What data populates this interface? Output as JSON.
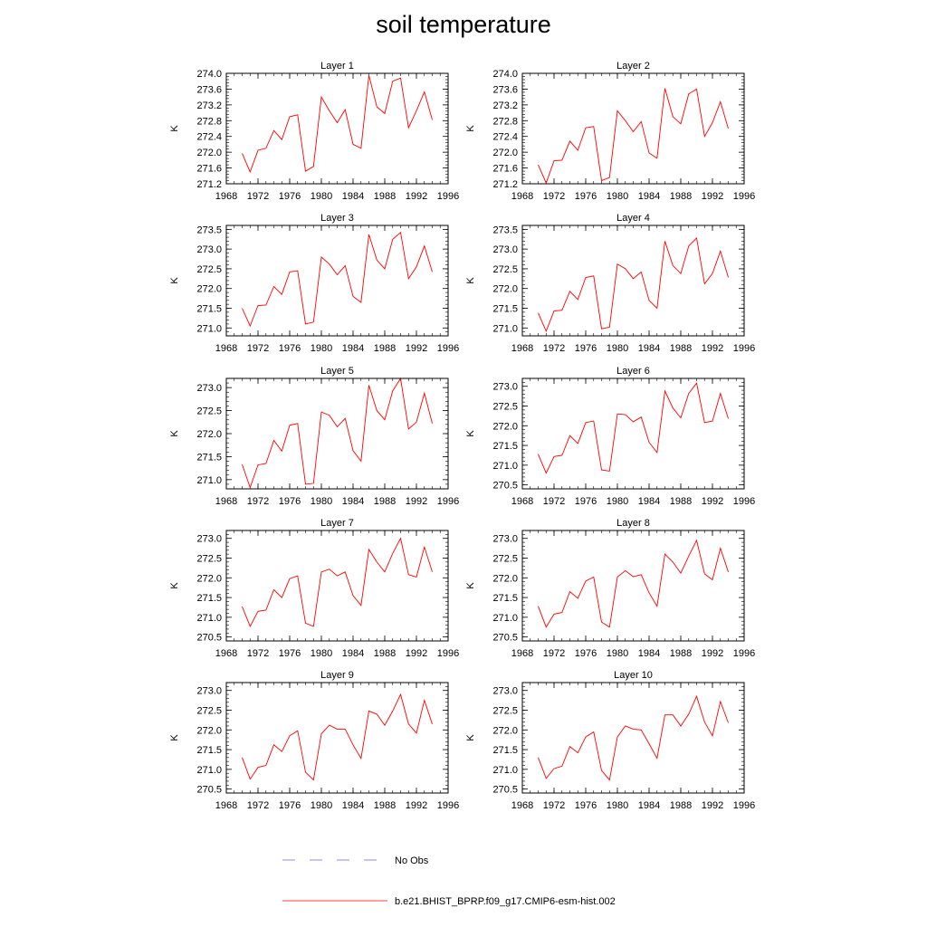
{
  "title": "soil temperature",
  "colors": {
    "model": "#ff0000",
    "obs": "#6a6ad8",
    "axis": "#000000"
  },
  "legend": {
    "obs_label": "No Obs",
    "model_label": "b.e21.BHIST_BPRP.f09_g17.CMIP6-esm-hist.002"
  },
  "chart_data": [
    {
      "type": "line",
      "title": "Layer 1",
      "xlabel": "",
      "ylabel": "K",
      "xlim": [
        1968,
        1996
      ],
      "ylim": [
        271.2,
        274.0
      ],
      "xticks": [
        1968,
        1972,
        1976,
        1980,
        1984,
        1988,
        1992,
        1996
      ],
      "yticks": [
        271.2,
        271.6,
        272.0,
        272.4,
        272.8,
        273.2,
        273.6,
        274.0
      ],
      "ytick_labels": [
        "271.2",
        "271.6",
        "272.0",
        "272.4",
        "272.8",
        "273.2",
        "273.6",
        "274.0"
      ],
      "x": [
        1970,
        1971,
        1972,
        1973,
        1974,
        1975,
        1976,
        1977,
        1978,
        1979,
        1980,
        1981,
        1982,
        1983,
        1984,
        1985,
        1986,
        1987,
        1988,
        1989,
        1990,
        1991,
        1992,
        1993,
        1994
      ],
      "series": [
        {
          "name": "b.e21.BHIST_BPRP.f09_g17.CMIP6-esm-hist.002",
          "values": [
            271.97,
            271.5,
            272.05,
            272.1,
            272.55,
            272.32,
            272.9,
            272.95,
            271.52,
            271.64,
            273.4,
            273.05,
            272.75,
            273.08,
            272.2,
            272.1,
            273.95,
            273.15,
            272.98,
            273.8,
            273.88,
            272.62,
            273.05,
            273.53,
            272.82
          ]
        }
      ]
    },
    {
      "type": "line",
      "title": "Layer 2",
      "xlabel": "",
      "ylabel": "K",
      "xlim": [
        1968,
        1996
      ],
      "ylim": [
        271.2,
        274.0
      ],
      "xticks": [
        1968,
        1972,
        1976,
        1980,
        1984,
        1988,
        1992,
        1996
      ],
      "yticks": [
        271.2,
        271.6,
        272.0,
        272.4,
        272.8,
        273.2,
        273.6,
        274.0
      ],
      "ytick_labels": [
        "271.2",
        "271.6",
        "272.0",
        "272.4",
        "272.8",
        "273.2",
        "273.6",
        "274.0"
      ],
      "x": [
        1970,
        1971,
        1972,
        1973,
        1974,
        1975,
        1976,
        1977,
        1978,
        1979,
        1980,
        1981,
        1982,
        1983,
        1984,
        1985,
        1986,
        1987,
        1988,
        1989,
        1990,
        1991,
        1992,
        1993,
        1994
      ],
      "series": [
        {
          "name": "b.e21.BHIST_BPRP.f09_g17.CMIP6-esm-hist.002",
          "values": [
            271.68,
            271.22,
            271.78,
            271.8,
            272.28,
            272.05,
            272.62,
            272.65,
            271.28,
            271.36,
            273.05,
            272.8,
            272.52,
            272.78,
            271.98,
            271.85,
            273.62,
            272.9,
            272.72,
            273.48,
            273.6,
            272.4,
            272.75,
            273.28,
            272.6
          ]
        }
      ]
    },
    {
      "type": "line",
      "title": "Layer 3",
      "xlabel": "",
      "ylabel": "K",
      "xlim": [
        1968,
        1996
      ],
      "ylim": [
        270.8,
        273.6
      ],
      "xticks": [
        1968,
        1972,
        1976,
        1980,
        1984,
        1988,
        1992,
        1996
      ],
      "yticks": [
        271.0,
        271.5,
        272.0,
        272.5,
        273.0,
        273.5
      ],
      "ytick_labels": [
        "271.0",
        "271.5",
        "272.0",
        "272.5",
        "273.0",
        "273.5"
      ],
      "x": [
        1970,
        1971,
        1972,
        1973,
        1974,
        1975,
        1976,
        1977,
        1978,
        1979,
        1980,
        1981,
        1982,
        1983,
        1984,
        1985,
        1986,
        1987,
        1988,
        1989,
        1990,
        1991,
        1992,
        1993,
        1994
      ],
      "series": [
        {
          "name": "b.e21.BHIST_BPRP.f09_g17.CMIP6-esm-hist.002",
          "values": [
            271.5,
            271.05,
            271.57,
            271.58,
            272.05,
            271.85,
            272.42,
            272.45,
            271.1,
            271.15,
            272.8,
            272.62,
            272.35,
            272.58,
            271.8,
            271.65,
            273.37,
            272.72,
            272.5,
            273.25,
            273.42,
            272.25,
            272.55,
            273.08,
            272.42
          ]
        }
      ]
    },
    {
      "type": "line",
      "title": "Layer 4",
      "xlabel": "",
      "ylabel": "K",
      "xlim": [
        1968,
        1996
      ],
      "ylim": [
        270.8,
        273.6
      ],
      "xticks": [
        1968,
        1972,
        1976,
        1980,
        1984,
        1988,
        1992,
        1996
      ],
      "yticks": [
        271.0,
        271.5,
        272.0,
        272.5,
        273.0,
        273.5
      ],
      "ytick_labels": [
        "271.0",
        "271.5",
        "272.0",
        "272.5",
        "273.0",
        "273.5"
      ],
      "x": [
        1970,
        1971,
        1972,
        1973,
        1974,
        1975,
        1976,
        1977,
        1978,
        1979,
        1980,
        1981,
        1982,
        1983,
        1984,
        1985,
        1986,
        1987,
        1988,
        1989,
        1990,
        1991,
        1992,
        1993,
        1994
      ],
      "series": [
        {
          "name": "b.e21.BHIST_BPRP.f09_g17.CMIP6-esm-hist.002",
          "values": [
            271.38,
            270.92,
            271.43,
            271.45,
            271.93,
            271.72,
            272.28,
            272.32,
            270.98,
            271.02,
            272.62,
            272.5,
            272.25,
            272.42,
            271.7,
            271.5,
            273.2,
            272.58,
            272.38,
            273.08,
            273.28,
            272.12,
            272.38,
            272.95,
            272.28
          ]
        }
      ]
    },
    {
      "type": "line",
      "title": "Layer 5",
      "xlabel": "",
      "ylabel": "K",
      "xlim": [
        1968,
        1996
      ],
      "ylim": [
        270.8,
        273.2
      ],
      "xticks": [
        1968,
        1972,
        1976,
        1980,
        1984,
        1988,
        1992,
        1996
      ],
      "yticks": [
        271.0,
        271.5,
        272.0,
        272.5,
        273.0
      ],
      "ytick_labels": [
        "271.0",
        "271.5",
        "272.0",
        "272.5",
        "273.0"
      ],
      "x": [
        1970,
        1971,
        1972,
        1973,
        1974,
        1975,
        1976,
        1977,
        1978,
        1979,
        1980,
        1981,
        1982,
        1983,
        1984,
        1985,
        1986,
        1987,
        1988,
        1989,
        1990,
        1991,
        1992,
        1993,
        1994
      ],
      "series": [
        {
          "name": "b.e21.BHIST_BPRP.f09_g17.CMIP6-esm-hist.002",
          "values": [
            271.33,
            270.83,
            271.32,
            271.35,
            271.85,
            271.62,
            272.18,
            272.22,
            270.9,
            270.92,
            272.47,
            272.4,
            272.15,
            272.33,
            271.63,
            271.4,
            273.05,
            272.5,
            272.3,
            272.93,
            273.2,
            272.1,
            272.25,
            272.88,
            272.22
          ]
        }
      ]
    },
    {
      "type": "line",
      "title": "Layer 6",
      "xlabel": "",
      "ylabel": "K",
      "xlim": [
        1968,
        1996
      ],
      "ylim": [
        270.4,
        273.2
      ],
      "xticks": [
        1968,
        1972,
        1976,
        1980,
        1984,
        1988,
        1992,
        1996
      ],
      "yticks": [
        270.5,
        271.0,
        271.5,
        272.0,
        272.5,
        273.0
      ],
      "ytick_labels": [
        "270.5",
        "271.0",
        "271.5",
        "272.0",
        "272.5",
        "273.0"
      ],
      "x": [
        1970,
        1971,
        1972,
        1973,
        1974,
        1975,
        1976,
        1977,
        1978,
        1979,
        1980,
        1981,
        1982,
        1983,
        1984,
        1985,
        1986,
        1987,
        1988,
        1989,
        1990,
        1991,
        1992,
        1993,
        1994
      ],
      "series": [
        {
          "name": "b.e21.BHIST_BPRP.f09_g17.CMIP6-esm-hist.002",
          "values": [
            271.28,
            270.8,
            271.22,
            271.25,
            271.75,
            271.55,
            272.08,
            272.12,
            270.88,
            270.85,
            272.3,
            272.28,
            272.1,
            272.22,
            271.58,
            271.32,
            272.88,
            272.45,
            272.2,
            272.82,
            273.08,
            272.08,
            272.12,
            272.82,
            272.18
          ]
        }
      ]
    },
    {
      "type": "line",
      "title": "Layer 7",
      "xlabel": "",
      "ylabel": "K",
      "xlim": [
        1968,
        1996
      ],
      "ylim": [
        270.4,
        273.2
      ],
      "xticks": [
        1968,
        1972,
        1976,
        1980,
        1984,
        1988,
        1992,
        1996
      ],
      "yticks": [
        270.5,
        271.0,
        271.5,
        272.0,
        272.5,
        273.0
      ],
      "ytick_labels": [
        "270.5",
        "271.0",
        "271.5",
        "272.0",
        "272.5",
        "273.0"
      ],
      "x": [
        1970,
        1971,
        1972,
        1973,
        1974,
        1975,
        1976,
        1977,
        1978,
        1979,
        1980,
        1981,
        1982,
        1983,
        1984,
        1985,
        1986,
        1987,
        1988,
        1989,
        1990,
        1991,
        1992,
        1993,
        1994
      ],
      "series": [
        {
          "name": "b.e21.BHIST_BPRP.f09_g17.CMIP6-esm-hist.002",
          "values": [
            271.27,
            270.77,
            271.15,
            271.18,
            271.7,
            271.5,
            271.98,
            272.05,
            270.85,
            270.77,
            272.15,
            272.22,
            272.05,
            272.15,
            271.55,
            271.3,
            272.72,
            272.4,
            272.15,
            272.62,
            273.0,
            272.08,
            272.02,
            272.78,
            272.15
          ]
        }
      ]
    },
    {
      "type": "line",
      "title": "Layer 8",
      "xlabel": "",
      "ylabel": "K",
      "xlim": [
        1968,
        1996
      ],
      "ylim": [
        270.4,
        273.2
      ],
      "xticks": [
        1968,
        1972,
        1976,
        1980,
        1984,
        1988,
        1992,
        1996
      ],
      "yticks": [
        270.5,
        271.0,
        271.5,
        272.0,
        272.5,
        273.0
      ],
      "ytick_labels": [
        "270.5",
        "271.0",
        "271.5",
        "272.0",
        "272.5",
        "273.0"
      ],
      "x": [
        1970,
        1971,
        1972,
        1973,
        1974,
        1975,
        1976,
        1977,
        1978,
        1979,
        1980,
        1981,
        1982,
        1983,
        1984,
        1985,
        1986,
        1987,
        1988,
        1989,
        1990,
        1991,
        1992,
        1993,
        1994
      ],
      "series": [
        {
          "name": "b.e21.BHIST_BPRP.f09_g17.CMIP6-esm-hist.002",
          "values": [
            271.28,
            270.75,
            271.08,
            271.12,
            271.65,
            271.48,
            271.92,
            272.02,
            270.88,
            270.75,
            272.02,
            272.18,
            272.03,
            272.08,
            271.62,
            271.28,
            272.6,
            272.4,
            272.12,
            272.55,
            272.95,
            272.1,
            271.95,
            272.75,
            272.15
          ]
        }
      ]
    },
    {
      "type": "line",
      "title": "Layer 9",
      "xlabel": "",
      "ylabel": "K",
      "xlim": [
        1968,
        1996
      ],
      "ylim": [
        270.4,
        273.2
      ],
      "xticks": [
        1968,
        1972,
        1976,
        1980,
        1984,
        1988,
        1992,
        1996
      ],
      "yticks": [
        270.5,
        271.0,
        271.5,
        272.0,
        272.5,
        273.0
      ],
      "ytick_labels": [
        "270.5",
        "271.0",
        "271.5",
        "272.0",
        "272.5",
        "273.0"
      ],
      "x": [
        1970,
        1971,
        1972,
        1973,
        1974,
        1975,
        1976,
        1977,
        1978,
        1979,
        1980,
        1981,
        1982,
        1983,
        1984,
        1985,
        1986,
        1987,
        1988,
        1989,
        1990,
        1991,
        1992,
        1993,
        1994
      ],
      "series": [
        {
          "name": "b.e21.BHIST_BPRP.f09_g17.CMIP6-esm-hist.002",
          "values": [
            271.3,
            270.75,
            271.05,
            271.1,
            271.62,
            271.45,
            271.85,
            271.98,
            270.93,
            270.73,
            271.9,
            272.12,
            272.02,
            272.02,
            271.62,
            271.28,
            272.48,
            272.4,
            272.12,
            272.48,
            272.9,
            272.15,
            271.92,
            272.75,
            272.15
          ]
        }
      ]
    },
    {
      "type": "line",
      "title": "Layer 10",
      "xlabel": "",
      "ylabel": "K",
      "xlim": [
        1968,
        1996
      ],
      "ylim": [
        270.4,
        273.2
      ],
      "xticks": [
        1968,
        1972,
        1976,
        1980,
        1984,
        1988,
        1992,
        1996
      ],
      "yticks": [
        270.5,
        271.0,
        271.5,
        272.0,
        272.5,
        273.0
      ],
      "ytick_labels": [
        "270.5",
        "271.0",
        "271.5",
        "272.0",
        "272.5",
        "273.0"
      ],
      "x": [
        1970,
        1971,
        1972,
        1973,
        1974,
        1975,
        1976,
        1977,
        1978,
        1979,
        1980,
        1981,
        1982,
        1983,
        1984,
        1985,
        1986,
        1987,
        1988,
        1989,
        1990,
        1991,
        1992,
        1993,
        1994
      ],
      "series": [
        {
          "name": "b.e21.BHIST_BPRP.f09_g17.CMIP6-esm-hist.002",
          "values": [
            271.3,
            270.77,
            271.02,
            271.08,
            271.58,
            271.42,
            271.82,
            271.95,
            270.97,
            270.73,
            271.82,
            272.1,
            272.02,
            272.0,
            271.65,
            271.28,
            272.38,
            272.38,
            272.1,
            272.4,
            272.85,
            272.2,
            271.85,
            272.72,
            272.18
          ]
        }
      ]
    }
  ]
}
